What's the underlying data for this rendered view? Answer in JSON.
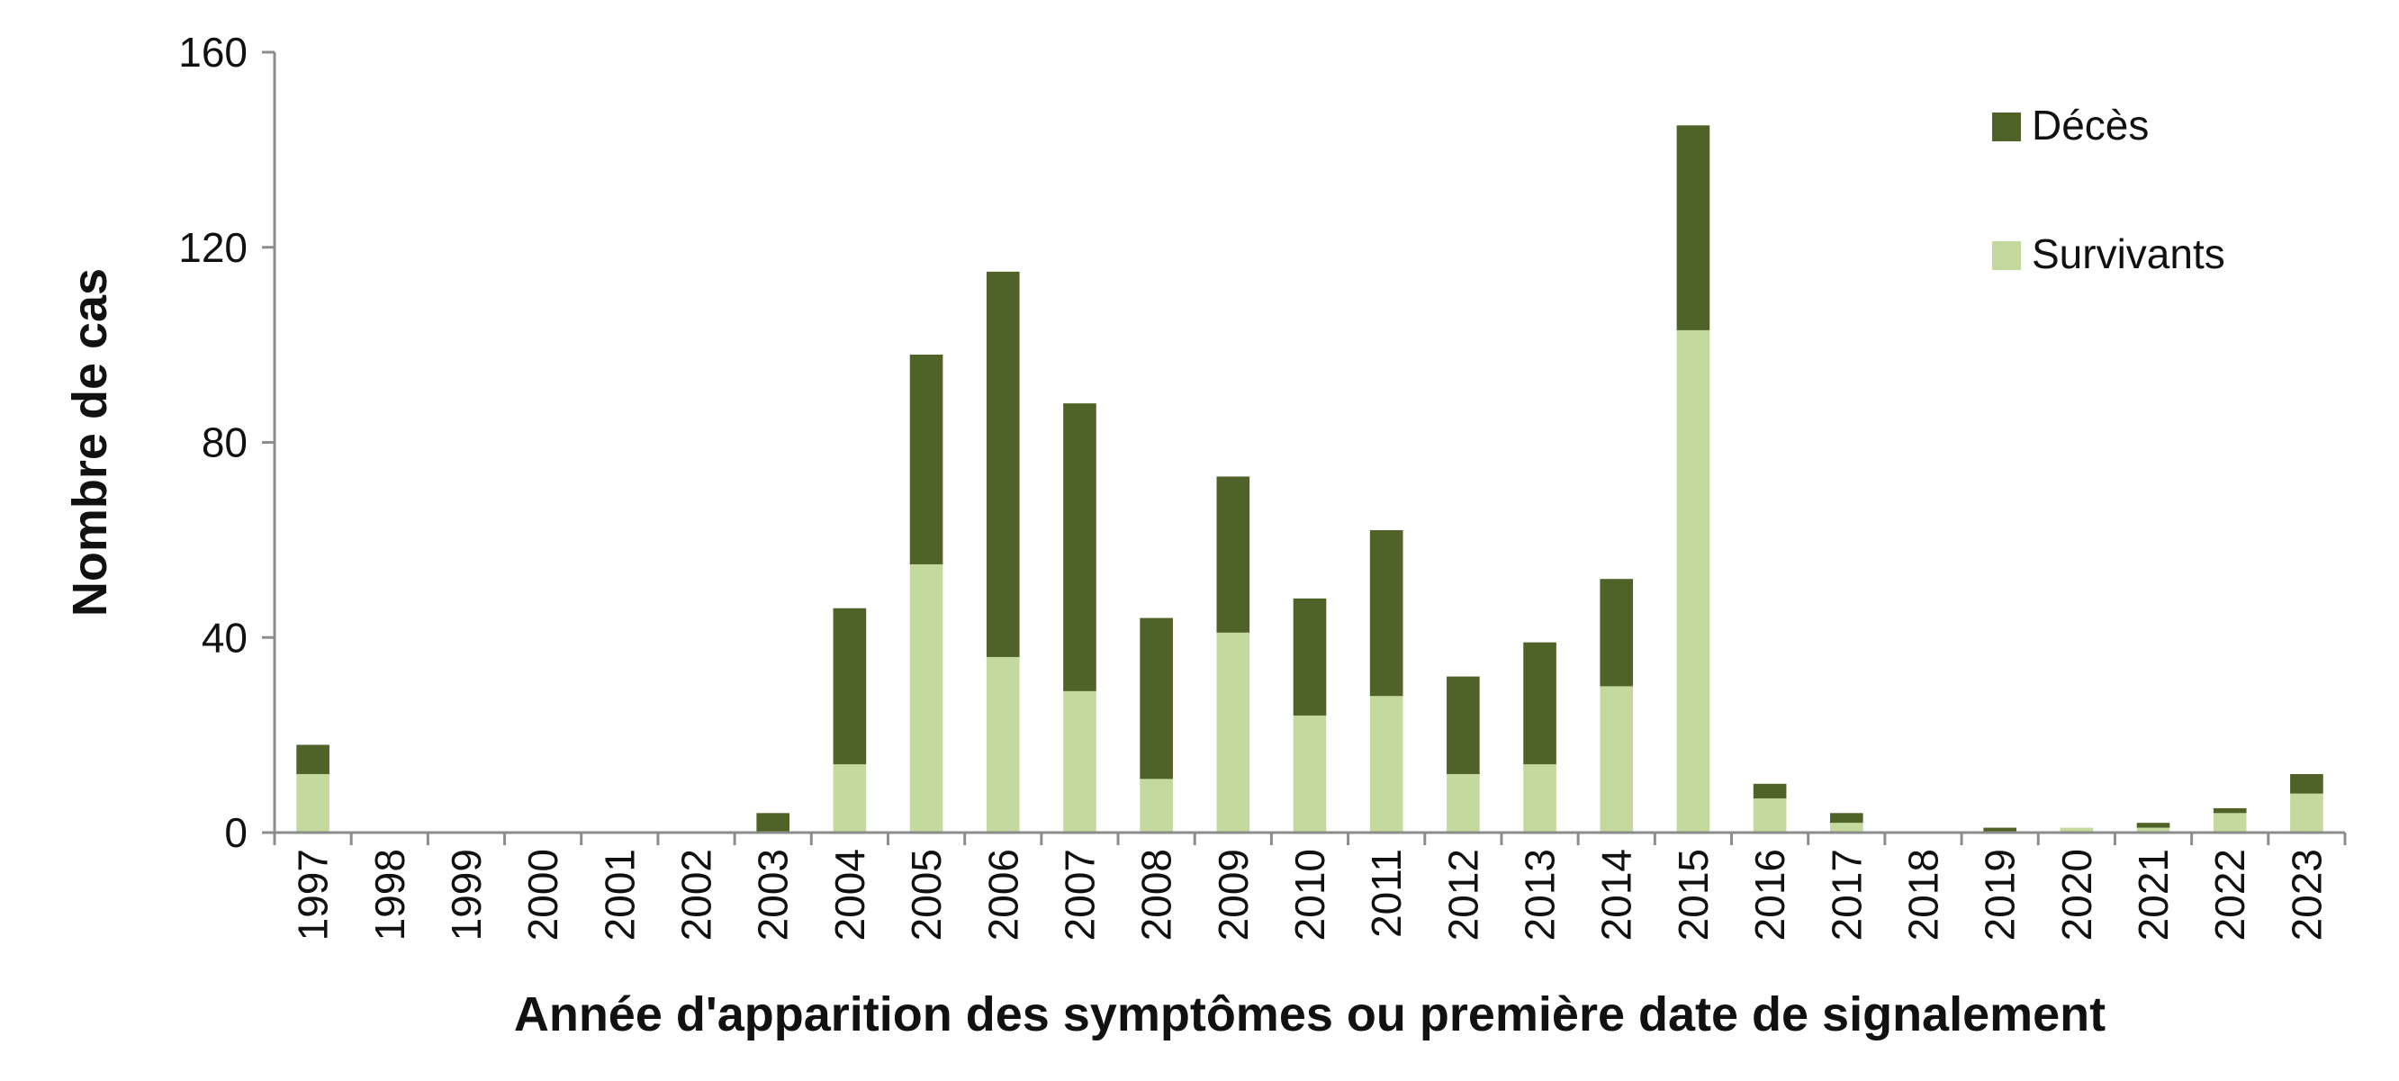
{
  "chart_data": {
    "type": "bar",
    "stacked": true,
    "title": "",
    "xlabel": "Année d'apparition des symptômes ou première date de signalement",
    "ylabel": "Nombre de cas",
    "ylim": [
      0,
      160
    ],
    "yticks": [
      0,
      40,
      80,
      120,
      160
    ],
    "grid": false,
    "legend_position": "top-right",
    "categories": [
      "1997",
      "1998",
      "1999",
      "2000",
      "2001",
      "2002",
      "2003",
      "2004",
      "2005",
      "2006",
      "2007",
      "2008",
      "2009",
      "2010",
      "2011",
      "2012",
      "2013",
      "2014",
      "2015",
      "2016",
      "2017",
      "2018",
      "2019",
      "2020",
      "2021",
      "2022",
      "2023"
    ],
    "series": [
      {
        "name": "Survivants",
        "color": "#c4d99e",
        "values": [
          12,
          0,
          0,
          0,
          0,
          0,
          0,
          14,
          55,
          36,
          29,
          11,
          41,
          24,
          28,
          12,
          14,
          30,
          103,
          7,
          2,
          0,
          0,
          1,
          1,
          4,
          8
        ]
      },
      {
        "name": "Décès",
        "color": "#4f6228",
        "values": [
          6,
          0,
          0,
          0,
          0,
          0,
          4,
          32,
          43,
          79,
          59,
          33,
          32,
          24,
          34,
          20,
          25,
          22,
          42,
          3,
          2,
          0,
          1,
          0,
          1,
          1,
          4
        ]
      }
    ],
    "legend": [
      {
        "label": "Décès",
        "color": "#4f6228"
      },
      {
        "label": "Survivants",
        "color": "#c4d99e"
      }
    ]
  }
}
